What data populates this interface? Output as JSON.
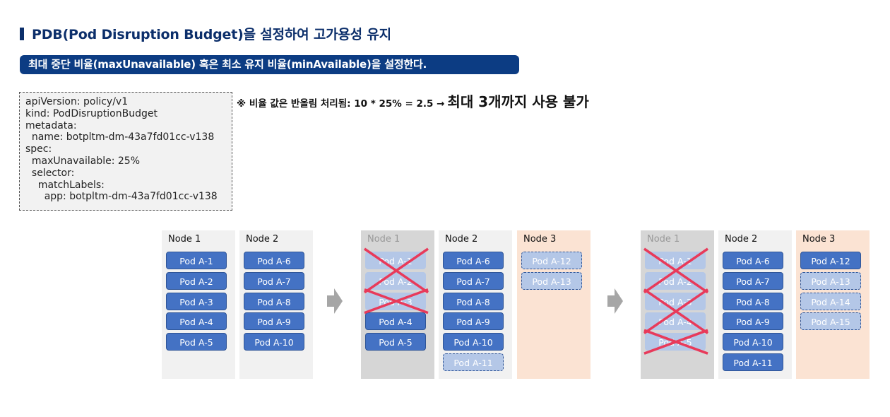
{
  "title": "PDB(Pod Disruption Budget)을 설정하여 고가용성 유지",
  "subtitle": "최대 중단 비율(maxUnavailable) 혹은 최소 유지 비율(minAvailable)을 설정한다.",
  "yaml_lines": [
    "apiVersion: policy/v1",
    "kind: PodDisruptionBudget",
    "metadata:",
    "  name: botpltm-dm-43a7fd01cc-v138",
    "spec:",
    "  maxUnavailable: 25%",
    "  selector:",
    "    matchLabels:",
    "      app: botpltm-dm-43a7fd01cc-v138"
  ],
  "note": {
    "prefix": "※ 비율 값은 반올림 처리됨: 10 * 25%  = 2.5 →",
    "emphasis": "최대 3개까지 사용 불가"
  },
  "colors": {
    "title": "#0c2f6b",
    "subtitle_bg": "#0c3c83",
    "pod": "#4472c4",
    "pod_pending": "#b4c7e7",
    "cross": "#e83a5a",
    "node_down": "#d6d6d6",
    "node_new": "#fbe3d3"
  },
  "stages": [
    {
      "nodes": [
        {
          "label": "Node 1",
          "state": "normal",
          "pods": [
            {
              "name": "Pod A-1",
              "status": "running"
            },
            {
              "name": "Pod A-2",
              "status": "running"
            },
            {
              "name": "Pod A-3",
              "status": "running"
            },
            {
              "name": "Pod A-4",
              "status": "running"
            },
            {
              "name": "Pod A-5",
              "status": "running"
            }
          ]
        },
        {
          "label": "Node 2",
          "state": "normal",
          "pods": [
            {
              "name": "Pod A-6",
              "status": "running"
            },
            {
              "name": "Pod A-7",
              "status": "running"
            },
            {
              "name": "Pod A-8",
              "status": "running"
            },
            {
              "name": "Pod A-9",
              "status": "running"
            },
            {
              "name": "Pod A-10",
              "status": "running"
            }
          ]
        }
      ]
    },
    {
      "nodes": [
        {
          "label": "Node 1",
          "state": "down",
          "pods": [
            {
              "name": "Pod A-1",
              "status": "evicted"
            },
            {
              "name": "Pod A-2",
              "status": "evicted"
            },
            {
              "name": "Pod A-3",
              "status": "evicted"
            },
            {
              "name": "Pod A-4",
              "status": "running"
            },
            {
              "name": "Pod A-5",
              "status": "running"
            }
          ]
        },
        {
          "label": "Node 2",
          "state": "normal",
          "pods": [
            {
              "name": "Pod A-6",
              "status": "running"
            },
            {
              "name": "Pod A-7",
              "status": "running"
            },
            {
              "name": "Pod A-8",
              "status": "running"
            },
            {
              "name": "Pod A-9",
              "status": "running"
            },
            {
              "name": "Pod A-10",
              "status": "running"
            },
            {
              "name": "Pod A-11",
              "status": "pending"
            }
          ]
        },
        {
          "label": "Node 3",
          "state": "new",
          "pods": [
            {
              "name": "Pod A-12",
              "status": "pending"
            },
            {
              "name": "Pod A-13",
              "status": "pending"
            }
          ]
        }
      ]
    },
    {
      "nodes": [
        {
          "label": "Node 1",
          "state": "down",
          "pods": [
            {
              "name": "Pod A-1",
              "status": "evicted"
            },
            {
              "name": "Pod A-2",
              "status": "evicted"
            },
            {
              "name": "Pod A-3",
              "status": "evicted"
            },
            {
              "name": "Pod A-4",
              "status": "evicted"
            },
            {
              "name": "Pod A-5",
              "status": "evicted"
            }
          ]
        },
        {
          "label": "Node 2",
          "state": "normal",
          "pods": [
            {
              "name": "Pod A-6",
              "status": "running"
            },
            {
              "name": "Pod A-7",
              "status": "running"
            },
            {
              "name": "Pod A-8",
              "status": "running"
            },
            {
              "name": "Pod A-9",
              "status": "running"
            },
            {
              "name": "Pod A-10",
              "status": "running"
            },
            {
              "name": "Pod A-11",
              "status": "running"
            }
          ]
        },
        {
          "label": "Node 3",
          "state": "new",
          "pods": [
            {
              "name": "Pod A-12",
              "status": "running"
            },
            {
              "name": "Pod A-13",
              "status": "pending"
            },
            {
              "name": "Pod A-14",
              "status": "pending"
            },
            {
              "name": "Pod A-15",
              "status": "pending"
            }
          ]
        }
      ]
    }
  ]
}
